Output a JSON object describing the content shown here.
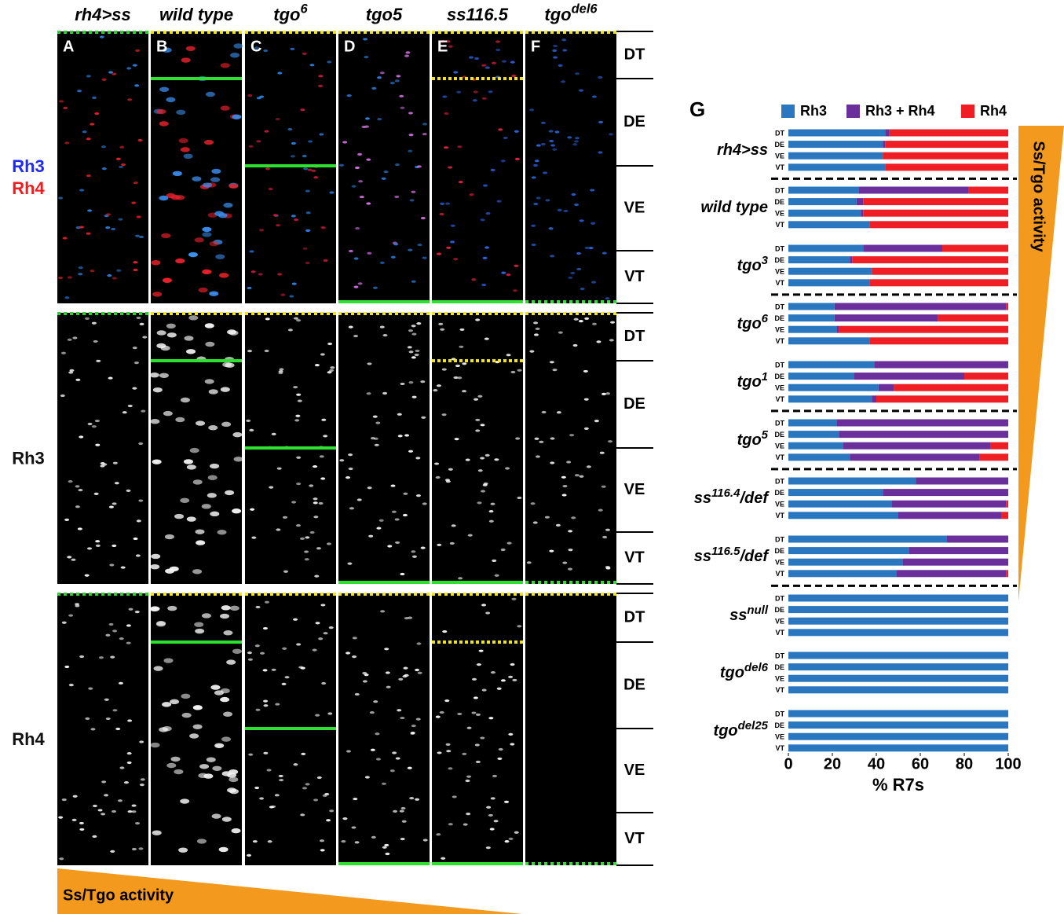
{
  "figure": {
    "columns": [
      {
        "letter": "A",
        "label": {
          "base": "rh4>ss"
        }
      },
      {
        "letter": "B",
        "label": {
          "base": "wild type"
        }
      },
      {
        "letter": "C",
        "label": {
          "base": "tgo",
          "sup": "6"
        }
      },
      {
        "letter": "D",
        "label": {
          "base": "tgo5"
        }
      },
      {
        "letter": "E",
        "label": {
          "base": "ss116.5"
        }
      },
      {
        "letter": "F",
        "label": {
          "base": "tgo",
          "sup": "del6"
        }
      }
    ],
    "rows": [
      {
        "labels": [
          {
            "text": "Rh3",
            "color": "#1f2cf0"
          },
          {
            "text": "Rh4",
            "color": "#f01f1f"
          }
        ]
      },
      {
        "labels": [
          {
            "text": "Rh3"
          }
        ]
      },
      {
        "labels": [
          {
            "text": "Rh4"
          }
        ]
      }
    ],
    "regions": [
      "DT",
      "DE",
      "VE",
      "VT"
    ],
    "gradient_label": "Ss/Tgo activity"
  },
  "chart_data": {
    "type": "bar",
    "orientation": "horizontal",
    "stacked": true,
    "panel_letter": "G",
    "groups": [
      {
        "base": "rh4>ss"
      },
      {
        "base": "wild type"
      },
      {
        "base": "tgo",
        "sup": "3"
      },
      {
        "base": "tgo",
        "sup": "6"
      },
      {
        "base": "tgo",
        "sup": "1"
      },
      {
        "base": "tgo",
        "sup": "5"
      },
      {
        "base": "ss",
        "sup": "116.4",
        "suffix": "/def"
      },
      {
        "base": "ss",
        "sup": "116.5",
        "suffix": "/def"
      },
      {
        "base": "ss",
        "sup": "null"
      },
      {
        "base": "tgo",
        "sup": "del6"
      },
      {
        "base": "tgo",
        "sup": "del25"
      }
    ],
    "regions": [
      "DT",
      "DE",
      "VE",
      "VT"
    ],
    "series": [
      {
        "name": "Rh3",
        "color": "#2a77c0",
        "values": [
          [
            44,
            43,
            43,
            44
          ],
          [
            32,
            31,
            33,
            37
          ],
          [
            34,
            28,
            38,
            37
          ],
          [
            21,
            21,
            22,
            37
          ],
          [
            39,
            30,
            41,
            38
          ],
          [
            22,
            23,
            25,
            28
          ],
          [
            58,
            43,
            47,
            50
          ],
          [
            72,
            55,
            52,
            49
          ],
          [
            100,
            100,
            100,
            100
          ],
          [
            100,
            100,
            100,
            100
          ],
          [
            100,
            100,
            100,
            100
          ]
        ]
      },
      {
        "name": "Rh3 + Rh4",
        "color": "#6a2f9b",
        "values": [
          [
            2,
            1,
            0,
            0
          ],
          [
            50,
            3,
            1,
            0
          ],
          [
            36,
            1,
            0,
            0
          ],
          [
            78,
            47,
            1,
            0
          ],
          [
            61,
            50,
            7,
            2
          ],
          [
            78,
            77,
            67,
            59
          ],
          [
            42,
            57,
            52,
            47
          ],
          [
            28,
            45,
            48,
            50
          ],
          [
            0,
            0,
            0,
            0
          ],
          [
            0,
            0,
            0,
            0
          ],
          [
            0,
            0,
            0,
            0
          ]
        ]
      },
      {
        "name": "Rh4",
        "color": "#ef1d24",
        "values": [
          [
            54,
            56,
            57,
            56
          ],
          [
            18,
            66,
            66,
            63
          ],
          [
            30,
            71,
            62,
            63
          ],
          [
            1,
            32,
            77,
            63
          ],
          [
            0,
            20,
            52,
            60
          ],
          [
            0,
            0,
            8,
            13
          ],
          [
            0,
            0,
            1,
            3
          ],
          [
            0,
            0,
            0,
            1
          ],
          [
            0,
            0,
            0,
            0
          ],
          [
            0,
            0,
            0,
            0
          ],
          [
            0,
            0,
            0,
            0
          ]
        ]
      }
    ],
    "xlim": [
      0,
      100
    ],
    "xticks": [
      0,
      20,
      40,
      60,
      80,
      100
    ],
    "xlabel": "% R7s",
    "gradient_label": "Ss/Tgo activity"
  }
}
